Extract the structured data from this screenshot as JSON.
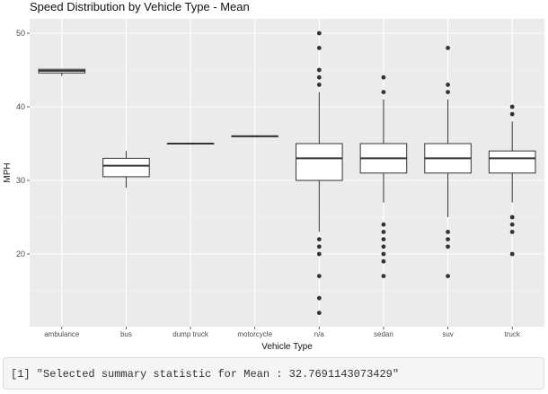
{
  "chart_data": {
    "type": "boxplot",
    "title": "Speed Distribution by Vehicle Type - Mean",
    "xlabel": "Vehicle Type",
    "ylabel": "MPH",
    "ylim": [
      10,
      52
    ],
    "yticks": [
      20,
      30,
      40,
      50
    ],
    "grid": true,
    "legend": "none",
    "colors": {
      "panel": "#ebebeb",
      "grid_major": "#ffffff",
      "grid_minor": "#f5f5f5",
      "box_fill": "#ffffff",
      "box_line": "#333333",
      "point": "#333333",
      "axis_text": "#4d4d4d"
    },
    "categories": [
      "ambulance",
      "bus",
      "dump truck",
      "motorcycle",
      "n/a",
      "sedan",
      "suv",
      "truck"
    ],
    "boxes": [
      {
        "category": "ambulance",
        "min": 44.2,
        "q1": 44.6,
        "median": 44.9,
        "q3": 45.1,
        "max": 45.1,
        "outliers": []
      },
      {
        "category": "bus",
        "min": 29,
        "q1": 30.5,
        "median": 32,
        "q3": 33,
        "max": 34,
        "outliers": []
      },
      {
        "category": "dump truck",
        "min": 35,
        "q1": 35,
        "median": 35,
        "q3": 35,
        "max": 35,
        "outliers": []
      },
      {
        "category": "motorcycle",
        "min": 36,
        "q1": 36,
        "median": 36,
        "q3": 36,
        "max": 36,
        "outliers": []
      },
      {
        "category": "n/a",
        "min": 23,
        "q1": 30,
        "median": 33,
        "q3": 35,
        "max": 42,
        "outliers": [
          50,
          48,
          45,
          44,
          43,
          22,
          21,
          20,
          17,
          14,
          12
        ]
      },
      {
        "category": "sedan",
        "min": 27,
        "q1": 31,
        "median": 33,
        "q3": 35,
        "max": 41,
        "outliers": [
          44,
          42,
          24,
          23,
          22,
          21,
          20,
          19,
          17
        ]
      },
      {
        "category": "suv",
        "min": 25,
        "q1": 31,
        "median": 33,
        "q3": 35,
        "max": 41,
        "outliers": [
          48,
          43,
          42,
          23,
          22,
          21,
          17
        ]
      },
      {
        "category": "truck",
        "min": 27,
        "q1": 31,
        "median": 33,
        "q3": 34,
        "max": 38,
        "outliers": [
          40,
          39,
          25,
          24,
          23,
          20
        ]
      }
    ]
  },
  "console": {
    "output": "[1] \"Selected summary statistic for Mean : 32.7691143073429\""
  }
}
